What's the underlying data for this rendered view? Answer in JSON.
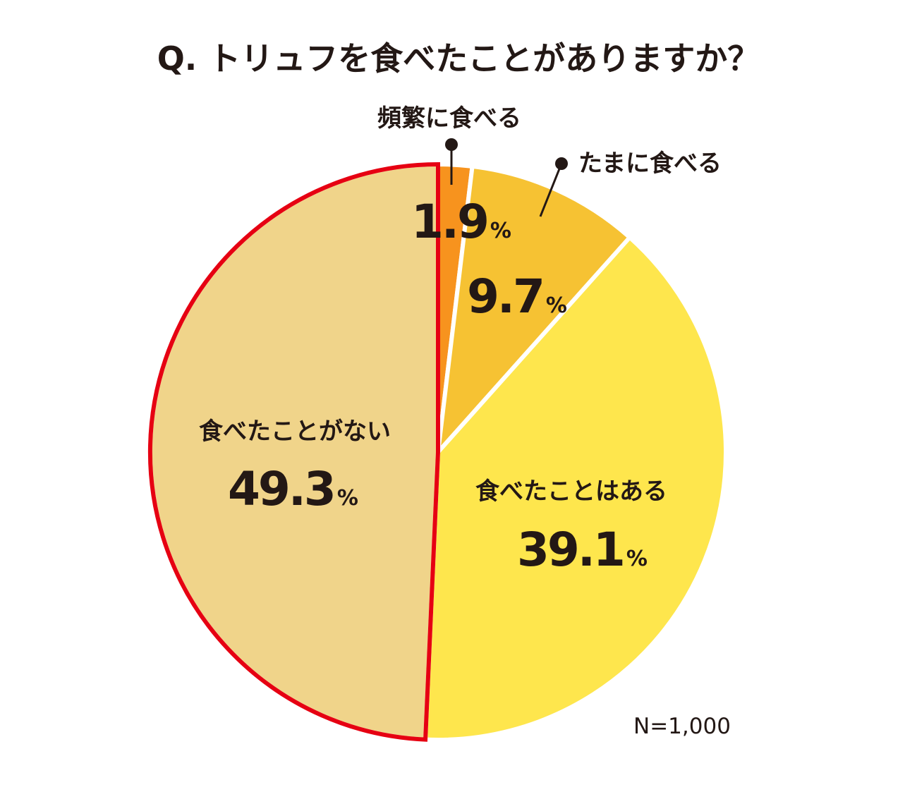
{
  "chart_data": {
    "type": "pie",
    "title": "Q. トリュフを食べたことがありますか？",
    "sample_size": "N=1,000",
    "percent_sign": "%",
    "start_angle_deg": 0,
    "direction": "clockwise",
    "highlighted_slice": "食べたことがない",
    "highlight_color": "#e60012",
    "slices": [
      {
        "label": "頻繁に食べる",
        "value": 1.9,
        "value_text": "1.9",
        "color": "#f7931e"
      },
      {
        "label": "たまに食べる",
        "value": 9.7,
        "value_text": "9.7",
        "color": "#f6c233"
      },
      {
        "label": "食べたことはある",
        "value": 39.1,
        "value_text": "39.1",
        "color": "#fee64d"
      },
      {
        "label": "食べたことがない",
        "value": 49.3,
        "value_text": "49.3",
        "color": "#f0d48a"
      }
    ]
  }
}
